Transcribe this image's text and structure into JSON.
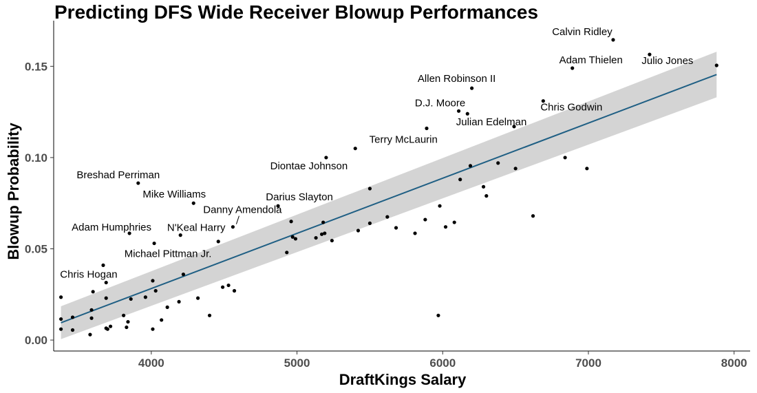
{
  "chart_data": {
    "type": "scatter",
    "title": "Predicting DFS Wide Receiver Blowup Performances",
    "xlabel": "DraftKings Salary",
    "ylabel": "Blowup Probability",
    "xlim": [
      3330,
      8110
    ],
    "ylim": [
      -0.006,
      0.172
    ],
    "x_ticks": [
      4000,
      5000,
      6000,
      7000,
      8000
    ],
    "x_tick_labels": [
      "4000",
      "5000",
      "6000",
      "7000",
      "8000"
    ],
    "y_ticks": [
      0.0,
      0.05,
      0.1,
      0.15
    ],
    "y_tick_labels": [
      "0.00",
      "0.05",
      "0.10",
      "0.15"
    ],
    "grid": false,
    "colors": {
      "points": "#000000",
      "fit_line": "#1f5f84",
      "confidence_band": "#d4d4d4",
      "axis": "#000000",
      "tick_text": "#4d4d4d"
    },
    "fit": {
      "method": "linear",
      "x": [
        3380,
        7880
      ],
      "y": [
        0.0095,
        0.1455
      ],
      "ci_lower": [
        0.0005,
        0.133
      ],
      "ci_upper": [
        0.0185,
        0.158
      ]
    },
    "points": [
      {
        "x": 7880,
        "y": 0.1505
      },
      {
        "x": 7170,
        "y": 0.1645,
        "label": "Calvin Ridley"
      },
      {
        "x": 7420,
        "y": 0.1565,
        "label": "Julio Jones"
      },
      {
        "x": 6890,
        "y": 0.149,
        "label": "Adam Thielen"
      },
      {
        "x": 6200,
        "y": 0.138,
        "label": "Allen Robinson II"
      },
      {
        "x": 6690,
        "y": 0.131,
        "label": "Chris Godwin"
      },
      {
        "x": 6110,
        "y": 0.1255,
        "label": "D.J. Moore"
      },
      {
        "x": 6170,
        "y": 0.124
      },
      {
        "x": 6490,
        "y": 0.117,
        "label": "Julian Edelman"
      },
      {
        "x": 5890,
        "y": 0.116
      },
      {
        "x": 5400,
        "y": 0.105,
        "label": "Terry McLaurin"
      },
      {
        "x": 5200,
        "y": 0.1,
        "label": "Diontae Johnson"
      },
      {
        "x": 6840,
        "y": 0.1
      },
      {
        "x": 6990,
        "y": 0.094
      },
      {
        "x": 6380,
        "y": 0.097
      },
      {
        "x": 6500,
        "y": 0.094
      },
      {
        "x": 6190,
        "y": 0.0955
      },
      {
        "x": 6120,
        "y": 0.088
      },
      {
        "x": 3910,
        "y": 0.086,
        "label": "Breshad Perriman"
      },
      {
        "x": 5500,
        "y": 0.083
      },
      {
        "x": 6280,
        "y": 0.084
      },
      {
        "x": 6300,
        "y": 0.079
      },
      {
        "x": 4290,
        "y": 0.075,
        "label": "Mike Williams"
      },
      {
        "x": 4870,
        "y": 0.0735,
        "label": "Darius Slayton"
      },
      {
        "x": 5980,
        "y": 0.0735
      },
      {
        "x": 6620,
        "y": 0.068
      },
      {
        "x": 5620,
        "y": 0.0675
      },
      {
        "x": 4960,
        "y": 0.065
      },
      {
        "x": 5880,
        "y": 0.066
      },
      {
        "x": 5180,
        "y": 0.0645
      },
      {
        "x": 5500,
        "y": 0.064
      },
      {
        "x": 6080,
        "y": 0.0645
      },
      {
        "x": 6020,
        "y": 0.062
      },
      {
        "x": 4560,
        "y": 0.062,
        "label": "Danny Amendola"
      },
      {
        "x": 5680,
        "y": 0.0615
      },
      {
        "x": 3850,
        "y": 0.0585,
        "label": "Adam Humphries"
      },
      {
        "x": 5420,
        "y": 0.06
      },
      {
        "x": 5810,
        "y": 0.0585
      },
      {
        "x": 5190,
        "y": 0.0585
      },
      {
        "x": 5170,
        "y": 0.058
      },
      {
        "x": 4200,
        "y": 0.0575,
        "label": "N'Keal Harry"
      },
      {
        "x": 4970,
        "y": 0.0565
      },
      {
        "x": 5130,
        "y": 0.056
      },
      {
        "x": 4990,
        "y": 0.0555
      },
      {
        "x": 5240,
        "y": 0.0545
      },
      {
        "x": 4460,
        "y": 0.054
      },
      {
        "x": 4020,
        "y": 0.053,
        "label": "Michael Pittman Jr."
      },
      {
        "x": 4930,
        "y": 0.048
      },
      {
        "x": 3670,
        "y": 0.041,
        "label": "Chris Hogan"
      },
      {
        "x": 4220,
        "y": 0.036
      },
      {
        "x": 4010,
        "y": 0.0325
      },
      {
        "x": 3690,
        "y": 0.0315
      },
      {
        "x": 4530,
        "y": 0.03
      },
      {
        "x": 4490,
        "y": 0.029
      },
      {
        "x": 4030,
        "y": 0.027
      },
      {
        "x": 4570,
        "y": 0.027
      },
      {
        "x": 3600,
        "y": 0.0265
      },
      {
        "x": 3960,
        "y": 0.0235
      },
      {
        "x": 3380,
        "y": 0.0235
      },
      {
        "x": 4320,
        "y": 0.023
      },
      {
        "x": 3690,
        "y": 0.023
      },
      {
        "x": 3860,
        "y": 0.0225
      },
      {
        "x": 4190,
        "y": 0.021
      },
      {
        "x": 4110,
        "y": 0.018
      },
      {
        "x": 3590,
        "y": 0.0165
      },
      {
        "x": 4400,
        "y": 0.0135
      },
      {
        "x": 3810,
        "y": 0.0135
      },
      {
        "x": 5970,
        "y": 0.0135
      },
      {
        "x": 3460,
        "y": 0.0125
      },
      {
        "x": 3590,
        "y": 0.012
      },
      {
        "x": 3380,
        "y": 0.0115
      },
      {
        "x": 4070,
        "y": 0.011
      },
      {
        "x": 3840,
        "y": 0.01
      },
      {
        "x": 3720,
        "y": 0.0075
      },
      {
        "x": 3830,
        "y": 0.007
      },
      {
        "x": 3690,
        "y": 0.0065
      },
      {
        "x": 3380,
        "y": 0.006
      },
      {
        "x": 3700,
        "y": 0.006
      },
      {
        "x": 4010,
        "y": 0.006
      },
      {
        "x": 3460,
        "y": 0.0055
      },
      {
        "x": 3580,
        "y": 0.003
      }
    ]
  }
}
